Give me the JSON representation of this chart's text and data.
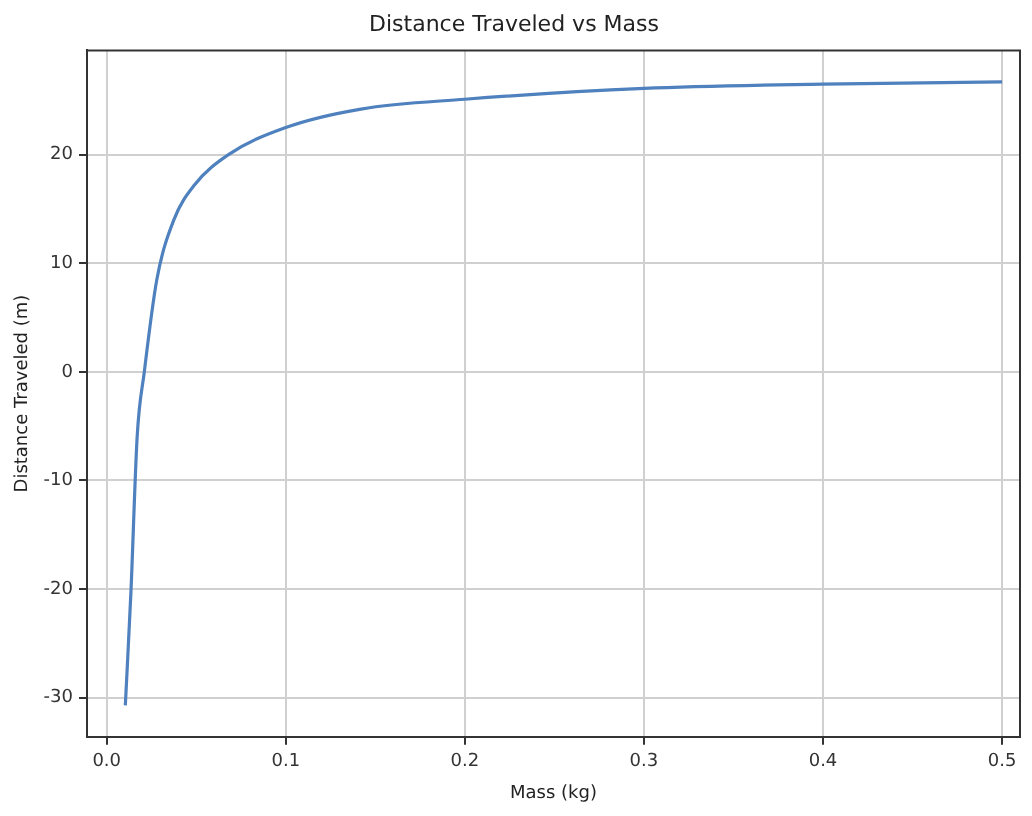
{
  "chart_data": {
    "type": "line",
    "title": "Distance Traveled vs Mass",
    "xlabel": "Mass (kg)",
    "ylabel": "Distance Traveled (m)",
    "x": [
      0.0104,
      0.0135,
      0.017,
      0.021,
      0.028,
      0.0375,
      0.049,
      0.068,
      0.1,
      0.142,
      0.2,
      0.3,
      0.4,
      0.5
    ],
    "series": [
      {
        "color": "#4e81bd",
        "values": [
          -30.7,
          -20.4,
          -6,
          0,
          8.5,
          14,
          17.2,
          20,
          22.5,
          24.2,
          25.1,
          26.1,
          26.5,
          26.7
        ]
      }
    ],
    "xlim": [
      -0.011,
      0.51
    ],
    "xticks": [
      {
        "value": 0,
        "label": "0.0"
      },
      0.1,
      0.2,
      0.3,
      0.4,
      0.5
    ],
    "ylim": [
      -33.6,
      29.6
    ],
    "yticks": [
      -30,
      -20,
      -10,
      0,
      10,
      20
    ],
    "grid": true,
    "legend": false,
    "marker": "none",
    "line_style": "solid"
  }
}
